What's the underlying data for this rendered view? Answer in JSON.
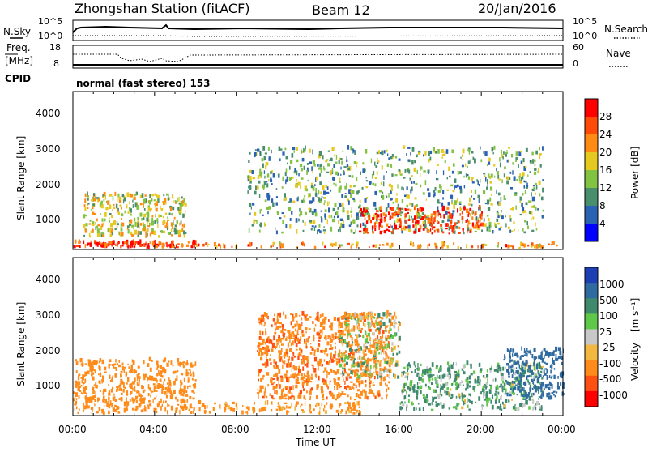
{
  "header": {
    "station": "Zhongshan Station (fitACF)",
    "beam": "Beam 12",
    "date": "20/Jan/2016"
  },
  "summary_panels": {
    "nsky": {
      "left_label": "N.Sky",
      "left_ticks": [
        "10^5",
        "10^0"
      ],
      "right_ticks": [
        "10^5",
        "10^0"
      ],
      "right_label": "N.Search"
    },
    "freq": {
      "left_label_1": "Freq.",
      "left_label_2": "[MHz]",
      "left_ticks": [
        "18",
        "8"
      ],
      "right_ticks": [
        "60",
        "0"
      ],
      "right_label": "Nave"
    },
    "cpid": {
      "label": "CPID",
      "text": "normal (fast stereo) 153"
    }
  },
  "x_axis": {
    "label": "Time UT",
    "ticks": [
      "00:00",
      "04:00",
      "08:00",
      "12:00",
      "16:00",
      "20:00",
      "00:00"
    ]
  },
  "power_panel": {
    "ylabel": "Slant Range [km]",
    "yticks": [
      "1000",
      "2000",
      "3000",
      "4000"
    ],
    "colorbar_label": "Power [dB]",
    "colorbar_ticks": [
      "4",
      "8",
      "12",
      "16",
      "20",
      "24",
      "28"
    ],
    "colors": [
      "#0000ff",
      "#2a62b4",
      "#4a8f6d",
      "#82c341",
      "#e6c91e",
      "#ff8a14",
      "#ff4a08",
      "#ff0000"
    ]
  },
  "velocity_panel": {
    "ylabel": "Slant Range [km]",
    "yticks": [
      "1000",
      "2000",
      "3000",
      "4000"
    ],
    "colorbar_label": "Velocity [m s-1]",
    "colorbar_ticks": [
      "1000",
      "500",
      "100",
      "25",
      "-25",
      "-100",
      "-500",
      "-1000"
    ],
    "colors": [
      "#1e3fb4",
      "#2f6aa0",
      "#3f8a6e",
      "#5fc84a",
      "#c8c8c8",
      "#f2b840",
      "#ff8c1a",
      "#ff5014",
      "#ff0000"
    ]
  },
  "chart_data": [
    {
      "type": "heatmap",
      "title": "Power",
      "xlabel": "Time UT",
      "ylabel": "Slant Range [km]",
      "x_range_hours": [
        0,
        24
      ],
      "ylim": [
        180,
        4600
      ],
      "colorbar": {
        "label": "Power [dB]",
        "ticks": [
          4,
          8,
          12,
          16,
          20,
          24,
          28
        ]
      },
      "regions": [
        {
          "t0": 0.0,
          "t1": 6.0,
          "r0": 200,
          "r1": 350,
          "value": 28
        },
        {
          "t0": 6.0,
          "t1": 24.0,
          "r0": 200,
          "r1": 300,
          "value": 22
        },
        {
          "t0": 0.5,
          "t1": 5.5,
          "r0": 500,
          "r1": 1700,
          "value": 16
        },
        {
          "t0": 8.5,
          "t1": 23.0,
          "r0": 600,
          "r1": 3000,
          "value": 12
        },
        {
          "t0": 14.0,
          "t1": 20.0,
          "r0": 600,
          "r1": 1300,
          "value": 26
        }
      ]
    },
    {
      "type": "heatmap",
      "title": "Velocity",
      "xlabel": "Time UT",
      "ylabel": "Slant Range [km]",
      "x_range_hours": [
        0,
        24
      ],
      "ylim": [
        180,
        4600
      ],
      "colorbar": {
        "label": "Velocity [m s-1]",
        "ticks": [
          1000,
          500,
          100,
          25,
          -25,
          -100,
          -500,
          -1000
        ]
      },
      "regions": [
        {
          "t0": 0.0,
          "t1": 6.0,
          "r0": 200,
          "r1": 1700,
          "value": -300
        },
        {
          "t0": 6.0,
          "t1": 14.0,
          "r0": 200,
          "r1": 500,
          "value": -200
        },
        {
          "t0": 9.0,
          "t1": 15.5,
          "r0": 600,
          "r1": 3000,
          "value": -400
        },
        {
          "t0": 13.0,
          "t1": 16.0,
          "r0": 1200,
          "r1": 3000,
          "value": 0
        },
        {
          "t0": 16.0,
          "t1": 23.0,
          "r0": 300,
          "r1": 1600,
          "value": 150
        },
        {
          "t0": 21.0,
          "t1": 24.0,
          "r0": 600,
          "r1": 2000,
          "value": 700
        }
      ]
    }
  ]
}
